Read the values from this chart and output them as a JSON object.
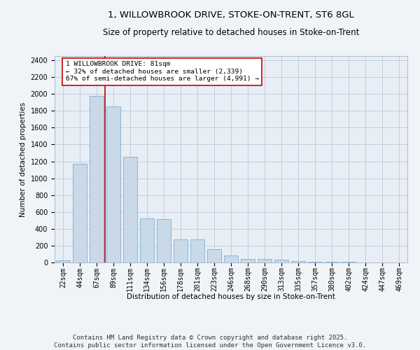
{
  "title_line1": "1, WILLOWBROOK DRIVE, STOKE-ON-TRENT, ST6 8GL",
  "title_line2": "Size of property relative to detached houses in Stoke-on-Trent",
  "xlabel": "Distribution of detached houses by size in Stoke-on-Trent",
  "ylabel": "Number of detached properties",
  "categories": [
    "22sqm",
    "44sqm",
    "67sqm",
    "89sqm",
    "111sqm",
    "134sqm",
    "156sqm",
    "178sqm",
    "201sqm",
    "223sqm",
    "246sqm",
    "268sqm",
    "290sqm",
    "313sqm",
    "335sqm",
    "357sqm",
    "380sqm",
    "402sqm",
    "424sqm",
    "447sqm",
    "469sqm"
  ],
  "values": [
    25,
    1175,
    1980,
    1855,
    1250,
    520,
    515,
    275,
    270,
    155,
    85,
    45,
    42,
    32,
    18,
    8,
    8,
    5,
    3,
    2,
    2
  ],
  "bar_color": "#c9d9e8",
  "bar_edge_color": "#7bafd4",
  "vline_color": "#cc0000",
  "annotation_text": "1 WILLOWBROOK DRIVE: 81sqm\n← 32% of detached houses are smaller (2,339)\n67% of semi-detached houses are larger (4,991) →",
  "annotation_box_color": "#ffffff",
  "annotation_box_edge_color": "#cc0000",
  "ylim": [
    0,
    2450
  ],
  "yticks": [
    0,
    200,
    400,
    600,
    800,
    1000,
    1200,
    1400,
    1600,
    1800,
    2000,
    2200,
    2400
  ],
  "grid_color": "#c0c8d8",
  "bg_color": "#e8eef5",
  "fig_bg_color": "#f0f4f8",
  "footnote": "Contains HM Land Registry data © Crown copyright and database right 2025.\nContains public sector information licensed under the Open Government Licence v3.0.",
  "title_fontsize": 9.5,
  "subtitle_fontsize": 8.5,
  "axis_label_fontsize": 7.5,
  "tick_fontsize": 7,
  "footnote_fontsize": 6.5
}
